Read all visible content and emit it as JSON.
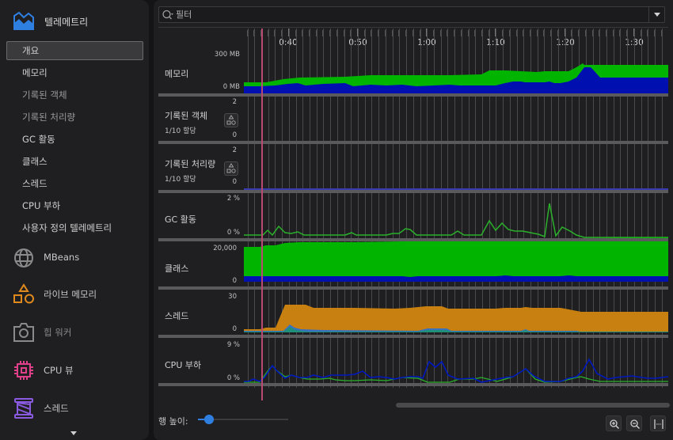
{
  "sidebar": {
    "header": {
      "label": "텔레메트리",
      "icon": "telemetry-icon",
      "color": "#2f7fe0"
    },
    "items": [
      {
        "label": "개요",
        "active": true
      },
      {
        "label": "메모리"
      },
      {
        "label": "기록된 객체",
        "dim": true
      },
      {
        "label": "기록된 처리량",
        "dim": true
      },
      {
        "label": "GC 활동"
      },
      {
        "label": "클래스"
      },
      {
        "label": "스레드"
      },
      {
        "label": "CPU 부하"
      },
      {
        "label": "사용자 정의 텔레메트리"
      }
    ],
    "tools": [
      {
        "label": "MBeans",
        "icon": "globe-icon",
        "color": "#8a8a8a"
      },
      {
        "label": "라이브 메모리",
        "icon": "shapes-icon",
        "color": "#e08a1e"
      },
      {
        "label": "힙 워커",
        "icon": "camera-icon",
        "color": "#8a8a8a"
      },
      {
        "label": "CPU 뷰",
        "icon": "cpu-chip-icon",
        "color": "#e0408a"
      },
      {
        "label": "스레드",
        "icon": "thread-spool-icon",
        "color": "#8a5ae0"
      }
    ]
  },
  "filter": {
    "placeholder": "필터",
    "value": ""
  },
  "timeline": {
    "labels": [
      "0:40",
      "0:50",
      "1:00",
      "1:10",
      "1:20",
      "1:30"
    ],
    "playhead_color": "#b84a72"
  },
  "rows": [
    {
      "label": "메모리",
      "max": "300 MB",
      "min": "0 MB"
    },
    {
      "label": "기록된 객체",
      "sub": "1/10 할당",
      "max": "2",
      "min": "0"
    },
    {
      "label": "기록된 처리량",
      "sub": "1/10 할당",
      "max": "2",
      "min": "0"
    },
    {
      "label": "GC 활동",
      "max": "2 %",
      "min": "0 %"
    },
    {
      "label": "클래스",
      "max": "20,000",
      "min": "0"
    },
    {
      "label": "스레드",
      "max": "30",
      "min": "0"
    },
    {
      "label": "CPU 부하",
      "max": "9 %",
      "min": "0 %"
    }
  ],
  "footer": {
    "row_height_label": "행 높이:",
    "zoom_in": "zoom-in",
    "zoom_out": "zoom-out",
    "fit": "fit-width"
  },
  "colors": {
    "green": "#00b400",
    "blue": "#0010b0",
    "orange": "#c88010",
    "teal": "#20907a",
    "accent": "#2f7fe0"
  }
}
